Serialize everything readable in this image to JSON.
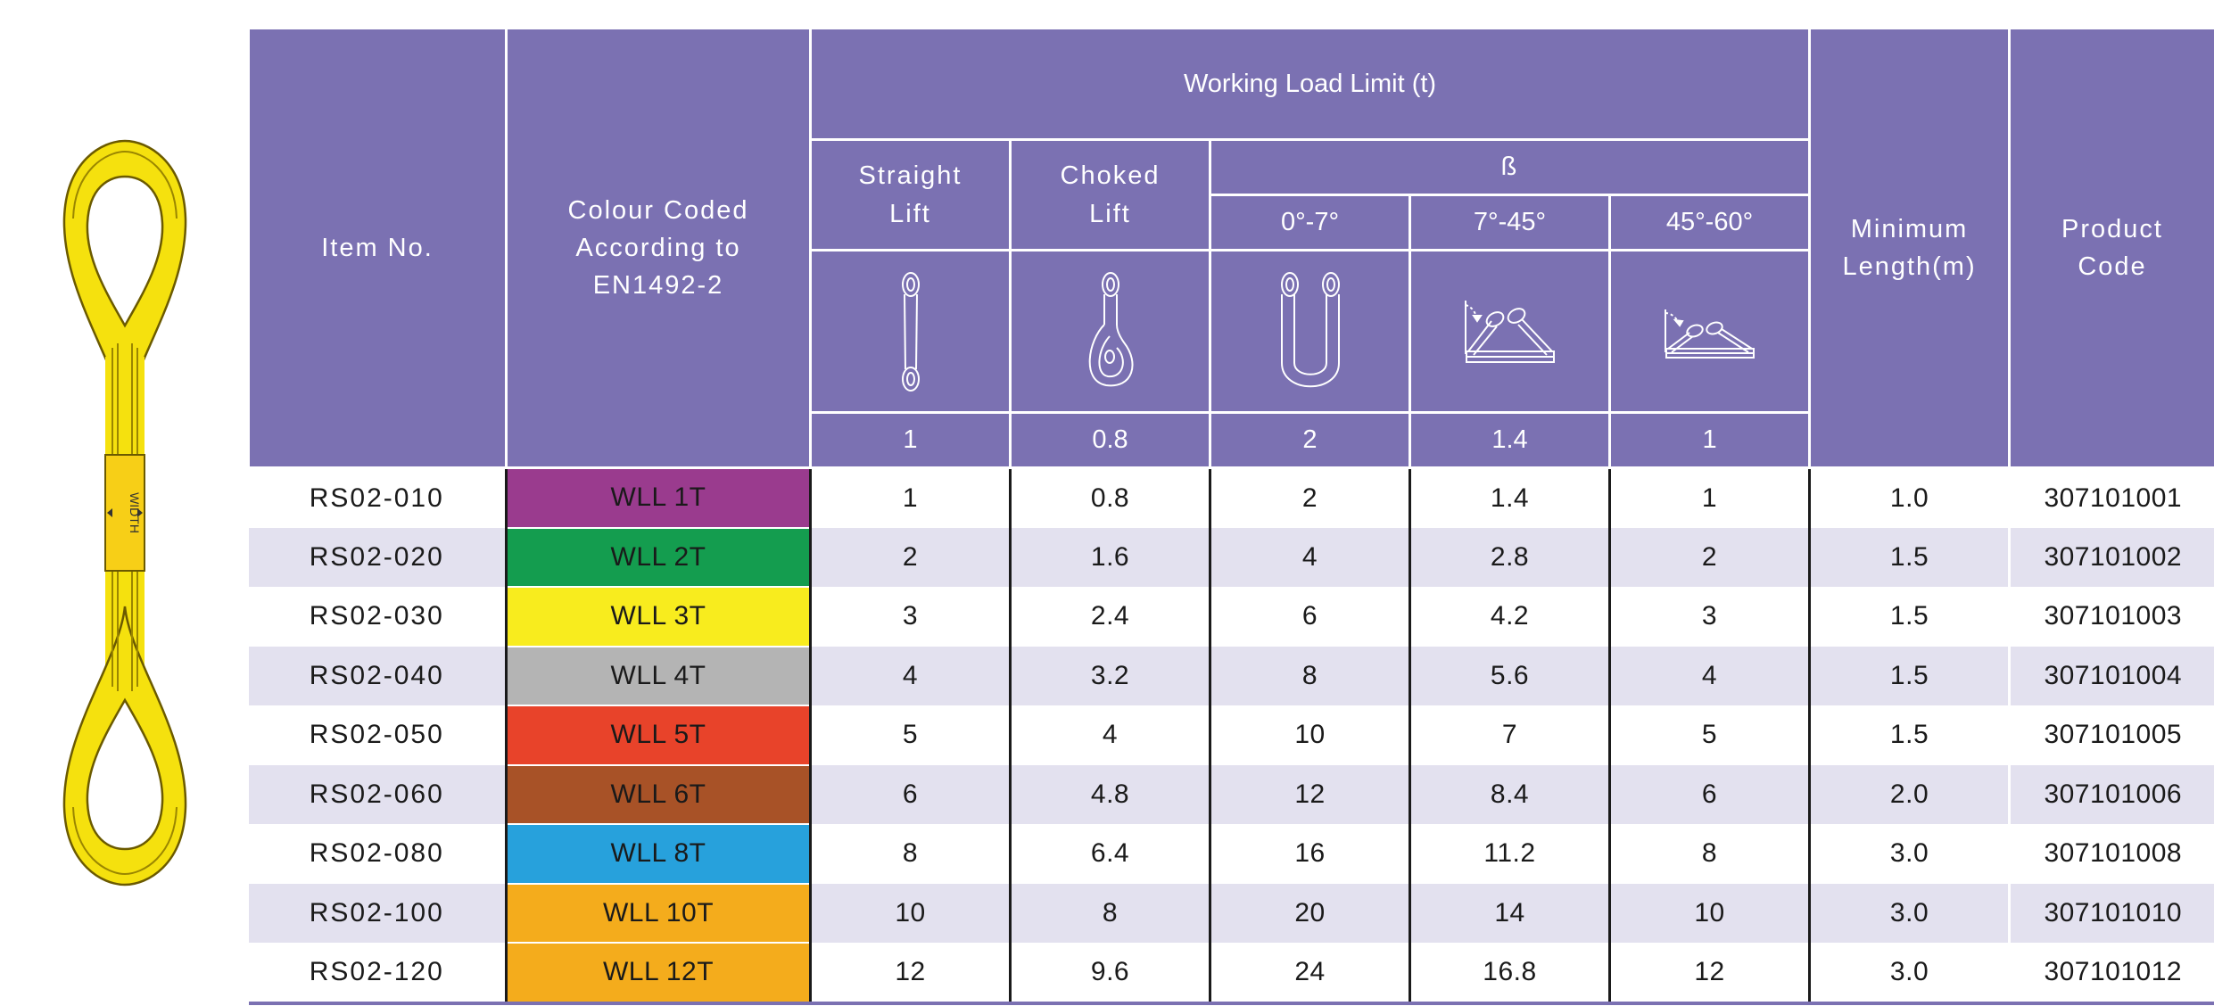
{
  "header": {
    "item_no": "Item No.",
    "colour_coded": [
      "Colour Coded",
      "According to",
      "EN1492-2"
    ],
    "working_load_limit": "Working Load Limit (t)",
    "straight_lift": [
      "Straight",
      "Lift"
    ],
    "choked_lift": [
      "Choked",
      "Lift"
    ],
    "beta": "ß",
    "angle_0_7": "0°-7°",
    "angle_7_45": "7°-45°",
    "angle_45_60": "45°-60°",
    "minimum_length": [
      "Minimum",
      "Length(m)"
    ],
    "product_code": [
      "Product",
      "Code"
    ],
    "factors": [
      "1",
      "0.8",
      "2",
      "1.4",
      "1"
    ]
  },
  "sling_label": "WIDTH",
  "colors": {
    "header_purple": "#7b71b2",
    "stripe_lavender": "#e3e1ef",
    "sling_yellow": "#f5e10e"
  },
  "rows": [
    {
      "item": "RS02-010",
      "wll": "WLL 1T",
      "color": "#9a3b8e",
      "straight": "1",
      "choked": "0.8",
      "b0_7": "2",
      "b7_45": "1.4",
      "b45_60": "1",
      "min_len": "1.0",
      "code": "307101001"
    },
    {
      "item": "RS02-020",
      "wll": "WLL 2T",
      "color": "#149d4f",
      "straight": "2",
      "choked": "1.6",
      "b0_7": "4",
      "b7_45": "2.8",
      "b45_60": "2",
      "min_len": "1.5",
      "code": "307101002"
    },
    {
      "item": "RS02-030",
      "wll": "WLL 3T",
      "color": "#f8ec1e",
      "straight": "3",
      "choked": "2.4",
      "b0_7": "6",
      "b7_45": "4.2",
      "b45_60": "3",
      "min_len": "1.5",
      "code": "307101003"
    },
    {
      "item": "RS02-040",
      "wll": "WLL 4T",
      "color": "#b4b4b4",
      "straight": "4",
      "choked": "3.2",
      "b0_7": "8",
      "b7_45": "5.6",
      "b45_60": "4",
      "min_len": "1.5",
      "code": "307101004"
    },
    {
      "item": "RS02-050",
      "wll": "WLL 5T",
      "color": "#e8432a",
      "straight": "5",
      "choked": "4",
      "b0_7": "10",
      "b7_45": "7",
      "b45_60": "5",
      "min_len": "1.5",
      "code": "307101005"
    },
    {
      "item": "RS02-060",
      "wll": "WLL 6T",
      "color": "#a85227",
      "straight": "6",
      "choked": "4.8",
      "b0_7": "12",
      "b7_45": "8.4",
      "b45_60": "6",
      "min_len": "2.0",
      "code": "307101006"
    },
    {
      "item": "RS02-080",
      "wll": "WLL 8T",
      "color": "#27a1dc",
      "straight": "8",
      "choked": "6.4",
      "b0_7": "16",
      "b7_45": "11.2",
      "b45_60": "8",
      "min_len": "3.0",
      "code": "307101008"
    },
    {
      "item": "RS02-100",
      "wll": "WLL 10T",
      "color": "#f4ac1c",
      "straight": "10",
      "choked": "8",
      "b0_7": "20",
      "b7_45": "14",
      "b45_60": "10",
      "min_len": "3.0",
      "code": "307101010"
    },
    {
      "item": "RS02-120",
      "wll": "WLL 12T",
      "color": "#f4ac1c",
      "straight": "12",
      "choked": "9.6",
      "b0_7": "24",
      "b7_45": "16.8",
      "b45_60": "12",
      "min_len": "3.0",
      "code": "307101012"
    }
  ]
}
